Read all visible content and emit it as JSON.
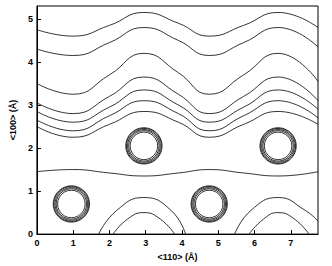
{
  "chart_data": {
    "type": "contour",
    "xlabel": "<110> (Å)",
    "ylabel": "<100> (Å)",
    "xlim": [
      0,
      7.75
    ],
    "ylim": [
      0,
      5.3
    ],
    "xticks": [
      0,
      1,
      2,
      3,
      4,
      5,
      6,
      7
    ],
    "yticks": [
      0,
      1,
      2,
      3,
      4,
      5
    ],
    "color": "#000000",
    "contours": [
      {
        "x": [
          0,
          1,
          2,
          2.95,
          3.9,
          4.75,
          5.7,
          6.65,
          7.75
        ],
        "y": [
          4.75,
          4.6,
          4.85,
          5.15,
          4.9,
          4.6,
          4.85,
          5.15,
          4.8
        ]
      },
      {
        "x": [
          0,
          1,
          2,
          2.95,
          3.9,
          4.75,
          5.7,
          6.65,
          7.75
        ],
        "y": [
          4.3,
          4.15,
          4.45,
          4.8,
          4.5,
          4.15,
          4.45,
          4.8,
          4.35
        ]
      },
      {
        "x": [
          0,
          1,
          2,
          2.95,
          3.9,
          4.75,
          5.7,
          6.65,
          7.75
        ],
        "y": [
          3.5,
          3.25,
          3.7,
          4.2,
          3.75,
          3.25,
          3.7,
          4.2,
          3.55
        ]
      },
      {
        "x": [
          0,
          1,
          2,
          2.95,
          3.9,
          4.75,
          5.7,
          6.65,
          7.75
        ],
        "y": [
          3.05,
          2.8,
          3.2,
          3.65,
          3.25,
          2.8,
          3.2,
          3.65,
          3.1
        ]
      },
      {
        "x": [
          0,
          1,
          2,
          2.95,
          3.9,
          4.75,
          5.7,
          6.65,
          7.75
        ],
        "y": [
          2.85,
          2.6,
          2.95,
          3.35,
          3.0,
          2.6,
          2.95,
          3.35,
          2.9
        ]
      },
      {
        "x": [
          0,
          1,
          2,
          2.95,
          3.9,
          4.75,
          5.7,
          6.65,
          7.75
        ],
        "y": [
          2.65,
          2.4,
          2.75,
          3.1,
          2.8,
          2.4,
          2.75,
          3.1,
          2.7
        ]
      },
      {
        "x": [
          0,
          1,
          2,
          2.95,
          3.9,
          4.75,
          5.7,
          6.65,
          7.75
        ],
        "y": [
          2.5,
          2.25,
          2.55,
          2.85,
          2.6,
          2.25,
          2.55,
          2.85,
          2.55
        ]
      },
      {
        "x": [
          0,
          1,
          2,
          2.95,
          3.9,
          4.75,
          5.7,
          6.65,
          7.75
        ],
        "y": [
          1.45,
          1.5,
          1.42,
          1.35,
          1.42,
          1.5,
          1.42,
          1.35,
          1.45
        ]
      },
      {
        "x": [
          1.7,
          2.2,
          2.95,
          3.7,
          4.1
        ],
        "y": [
          0,
          0.55,
          0.85,
          0.55,
          0
        ]
      },
      {
        "x": [
          2.1,
          2.5,
          2.95,
          3.4,
          3.8
        ],
        "y": [
          0,
          0.35,
          0.5,
          0.35,
          0
        ]
      },
      {
        "x": [
          5.45,
          5.9,
          6.65,
          7.4,
          7.75
        ],
        "y": [
          0,
          0.55,
          0.85,
          0.55,
          0.3
        ]
      },
      {
        "x": [
          5.85,
          6.25,
          6.65,
          7.1,
          7.5
        ],
        "y": [
          0,
          0.35,
          0.5,
          0.35,
          0
        ]
      }
    ],
    "atoms": [
      {
        "x": 0.95,
        "y": 0.7,
        "radii": [
          0.38,
          0.42,
          0.45,
          0.48,
          0.5
        ]
      },
      {
        "x": 2.95,
        "y": 2.05,
        "radii": [
          0.38,
          0.42,
          0.45,
          0.48,
          0.5
        ]
      },
      {
        "x": 4.75,
        "y": 0.7,
        "radii": [
          0.38,
          0.42,
          0.45,
          0.48,
          0.5
        ]
      },
      {
        "x": 6.65,
        "y": 2.05,
        "radii": [
          0.38,
          0.42,
          0.45,
          0.48,
          0.5
        ]
      }
    ]
  }
}
